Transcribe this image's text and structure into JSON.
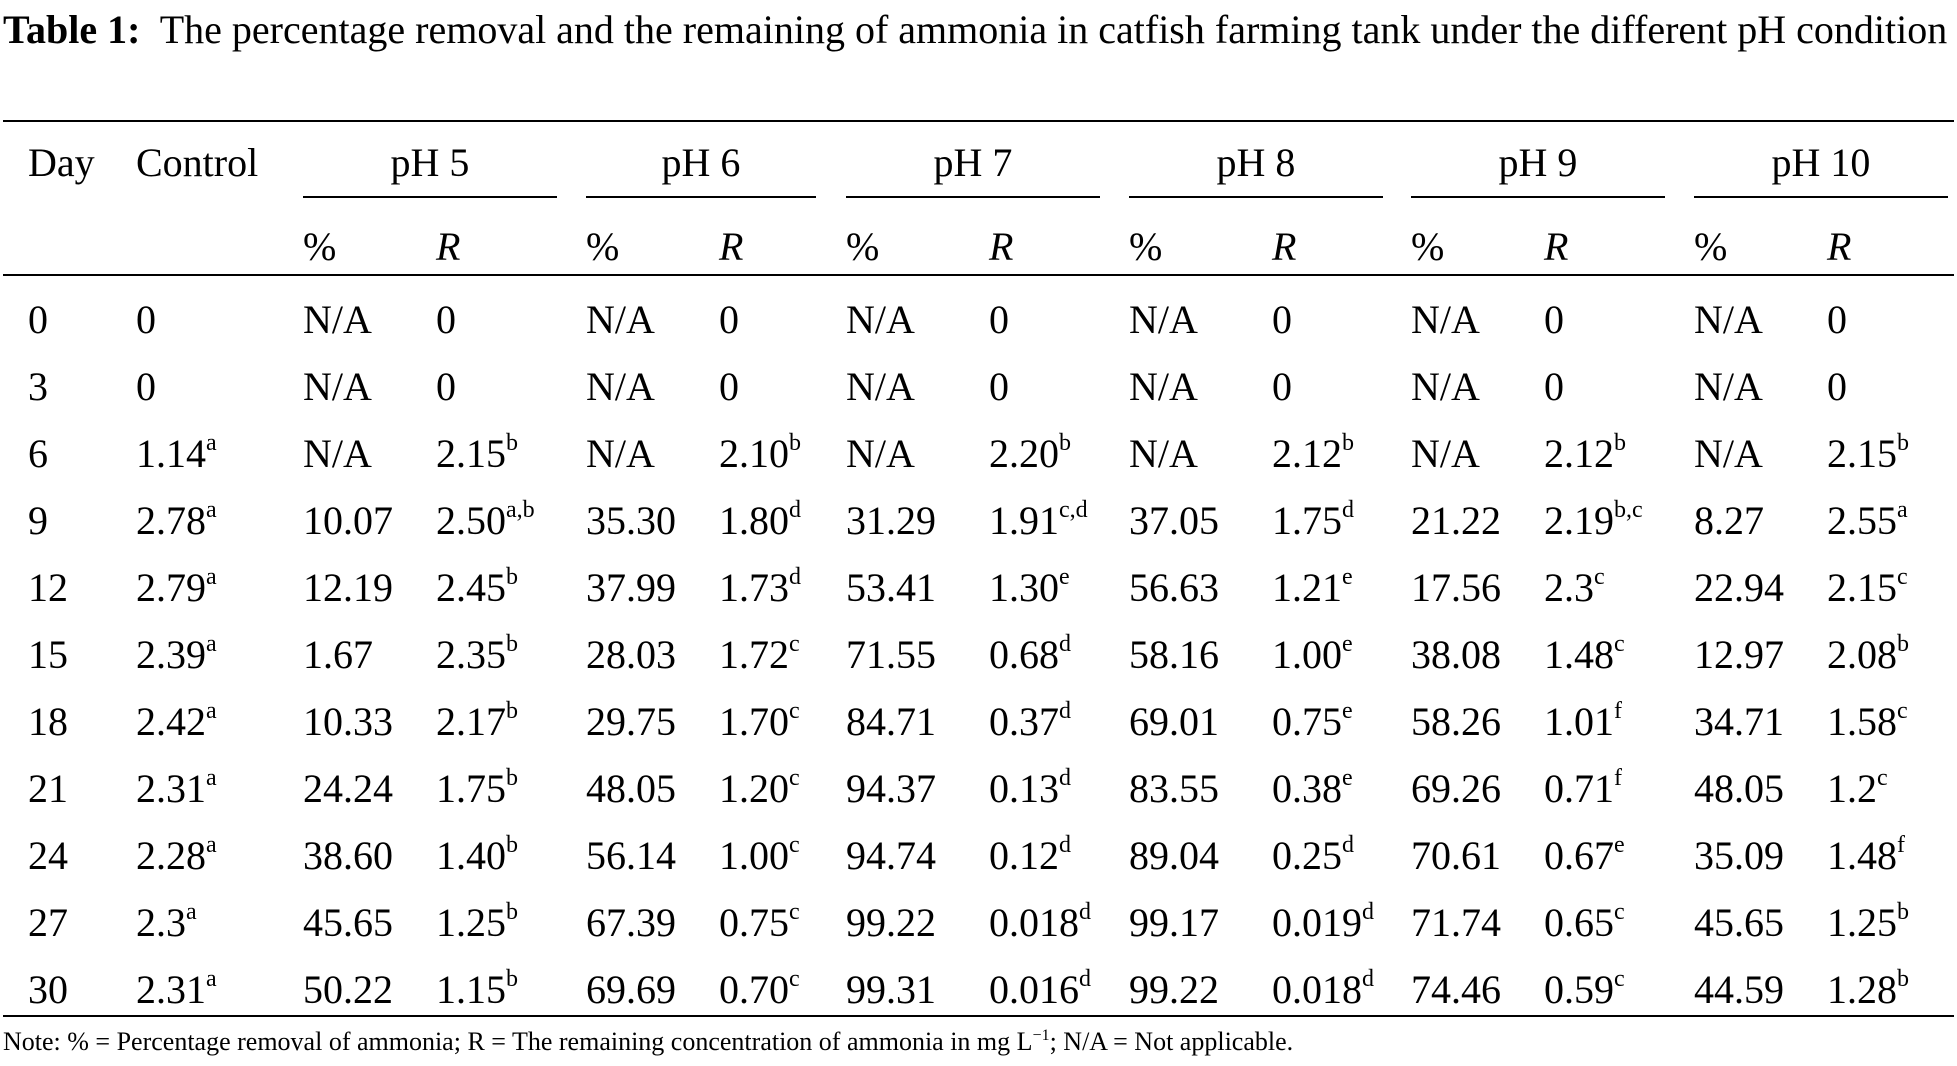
{
  "caption": {
    "label": "Table 1:",
    "text": "The percentage removal and the remaining of ammonia in catfish farming tank under the different pH condition"
  },
  "header": {
    "day": "Day",
    "control": "Control",
    "groups": [
      "pH 5",
      "pH 6",
      "pH 7",
      "pH 8",
      "pH 9",
      "pH 10"
    ],
    "sub_pct": "%",
    "sub_r": "R"
  },
  "rows": [
    {
      "day": "0",
      "control": {
        "v": "0",
        "s": ""
      },
      "cols": [
        {
          "p": "N/A",
          "r": "0",
          "rs": ""
        },
        {
          "p": "N/A",
          "r": "0",
          "rs": ""
        },
        {
          "p": "N/A",
          "r": "0",
          "rs": ""
        },
        {
          "p": "N/A",
          "r": "0",
          "rs": ""
        },
        {
          "p": "N/A",
          "r": "0",
          "rs": ""
        },
        {
          "p": "N/A",
          "r": "0",
          "rs": ""
        }
      ]
    },
    {
      "day": "3",
      "control": {
        "v": "0",
        "s": ""
      },
      "cols": [
        {
          "p": "N/A",
          "r": "0",
          "rs": ""
        },
        {
          "p": "N/A",
          "r": "0",
          "rs": ""
        },
        {
          "p": "N/A",
          "r": "0",
          "rs": ""
        },
        {
          "p": "N/A",
          "r": "0",
          "rs": ""
        },
        {
          "p": "N/A",
          "r": "0",
          "rs": ""
        },
        {
          "p": "N/A",
          "r": "0",
          "rs": ""
        }
      ]
    },
    {
      "day": "6",
      "control": {
        "v": "1.14",
        "s": "a"
      },
      "cols": [
        {
          "p": "N/A",
          "r": "2.15",
          "rs": "b"
        },
        {
          "p": "N/A",
          "r": "2.10",
          "rs": "b"
        },
        {
          "p": "N/A",
          "r": "2.20",
          "rs": "b"
        },
        {
          "p": "N/A",
          "r": "2.12",
          "rs": "b"
        },
        {
          "p": "N/A",
          "r": "2.12",
          "rs": "b"
        },
        {
          "p": "N/A",
          "r": "2.15",
          "rs": "b"
        }
      ]
    },
    {
      "day": "9",
      "control": {
        "v": "2.78",
        "s": "a"
      },
      "cols": [
        {
          "p": "10.07",
          "r": "2.50",
          "rs": "a,b"
        },
        {
          "p": "35.30",
          "r": "1.80",
          "rs": "d"
        },
        {
          "p": "31.29",
          "r": "1.91",
          "rs": "c,d"
        },
        {
          "p": "37.05",
          "r": "1.75",
          "rs": "d"
        },
        {
          "p": "21.22",
          "r": "2.19",
          "rs": "b,c"
        },
        {
          "p": "8.27",
          "r": "2.55",
          "rs": "a"
        }
      ]
    },
    {
      "day": "12",
      "control": {
        "v": "2.79",
        "s": "a"
      },
      "cols": [
        {
          "p": "12.19",
          "r": "2.45",
          "rs": "b"
        },
        {
          "p": "37.99",
          "r": "1.73",
          "rs": "d"
        },
        {
          "p": "53.41",
          "r": "1.30",
          "rs": "e"
        },
        {
          "p": "56.63",
          "r": "1.21",
          "rs": "e"
        },
        {
          "p": "17.56",
          "r": "2.3",
          "rs": "c"
        },
        {
          "p": "22.94",
          "r": "2.15",
          "rs": "c"
        }
      ]
    },
    {
      "day": "15",
      "control": {
        "v": "2.39",
        "s": "a"
      },
      "cols": [
        {
          "p": "1.67",
          "r": "2.35",
          "rs": "b"
        },
        {
          "p": "28.03",
          "r": "1.72",
          "rs": "c"
        },
        {
          "p": "71.55",
          "r": "0.68",
          "rs": "d"
        },
        {
          "p": "58.16",
          "r": "1.00",
          "rs": "e"
        },
        {
          "p": "38.08",
          "r": "1.48",
          "rs": "c"
        },
        {
          "p": "12.97",
          "r": "2.08",
          "rs": "b"
        }
      ]
    },
    {
      "day": "18",
      "control": {
        "v": "2.42",
        "s": "a"
      },
      "cols": [
        {
          "p": "10.33",
          "r": "2.17",
          "rs": "b"
        },
        {
          "p": "29.75",
          "r": "1.70",
          "rs": "c"
        },
        {
          "p": "84.71",
          "r": "0.37",
          "rs": "d"
        },
        {
          "p": "69.01",
          "r": "0.75",
          "rs": "e"
        },
        {
          "p": "58.26",
          "r": "1.01",
          "rs": "f"
        },
        {
          "p": "34.71",
          "r": "1.58",
          "rs": "c"
        }
      ]
    },
    {
      "day": "21",
      "control": {
        "v": "2.31",
        "s": "a"
      },
      "cols": [
        {
          "p": "24.24",
          "r": "1.75",
          "rs": "b"
        },
        {
          "p": "48.05",
          "r": "1.20",
          "rs": "c"
        },
        {
          "p": "94.37",
          "r": "0.13",
          "rs": "d"
        },
        {
          "p": "83.55",
          "r": "0.38",
          "rs": "e"
        },
        {
          "p": "69.26",
          "r": "0.71",
          "rs": "f"
        },
        {
          "p": "48.05",
          "r": "1.2",
          "rs": "c"
        }
      ]
    },
    {
      "day": "24",
      "control": {
        "v": "2.28",
        "s": "a"
      },
      "cols": [
        {
          "p": "38.60",
          "r": "1.40",
          "rs": "b"
        },
        {
          "p": "56.14",
          "r": "1.00",
          "rs": "c"
        },
        {
          "p": "94.74",
          "r": "0.12",
          "rs": "d"
        },
        {
          "p": "89.04",
          "r": "0.25",
          "rs": "d"
        },
        {
          "p": "70.61",
          "r": "0.67",
          "rs": "e"
        },
        {
          "p": "35.09",
          "r": "1.48",
          "rs": "f"
        }
      ]
    },
    {
      "day": "27",
      "control": {
        "v": "2.3",
        "s": "a"
      },
      "cols": [
        {
          "p": "45.65",
          "r": "1.25",
          "rs": "b"
        },
        {
          "p": "67.39",
          "r": "0.75",
          "rs": "c"
        },
        {
          "p": "99.22",
          "r": "0.018",
          "rs": "d"
        },
        {
          "p": "99.17",
          "r": "0.019",
          "rs": "d"
        },
        {
          "p": "71.74",
          "r": "0.65",
          "rs": "c"
        },
        {
          "p": "45.65",
          "r": "1.25",
          "rs": "b"
        }
      ]
    },
    {
      "day": "30",
      "control": {
        "v": "2.31",
        "s": "a"
      },
      "cols": [
        {
          "p": "50.22",
          "r": "1.15",
          "rs": "b"
        },
        {
          "p": "69.69",
          "r": "0.70",
          "rs": "c"
        },
        {
          "p": "99.31",
          "r": "0.016",
          "rs": "d"
        },
        {
          "p": "99.22",
          "r": "0.018",
          "rs": "d"
        },
        {
          "p": "74.46",
          "r": "0.59",
          "rs": "c"
        },
        {
          "p": "44.59",
          "r": "1.28",
          "rs": "b"
        }
      ]
    }
  ],
  "note": {
    "before": "Note: % = Percentage removal of ammonia; R = The remaining concentration of ammonia in mg L",
    "exp": "−1",
    "after": "; N/A = Not applicable."
  }
}
